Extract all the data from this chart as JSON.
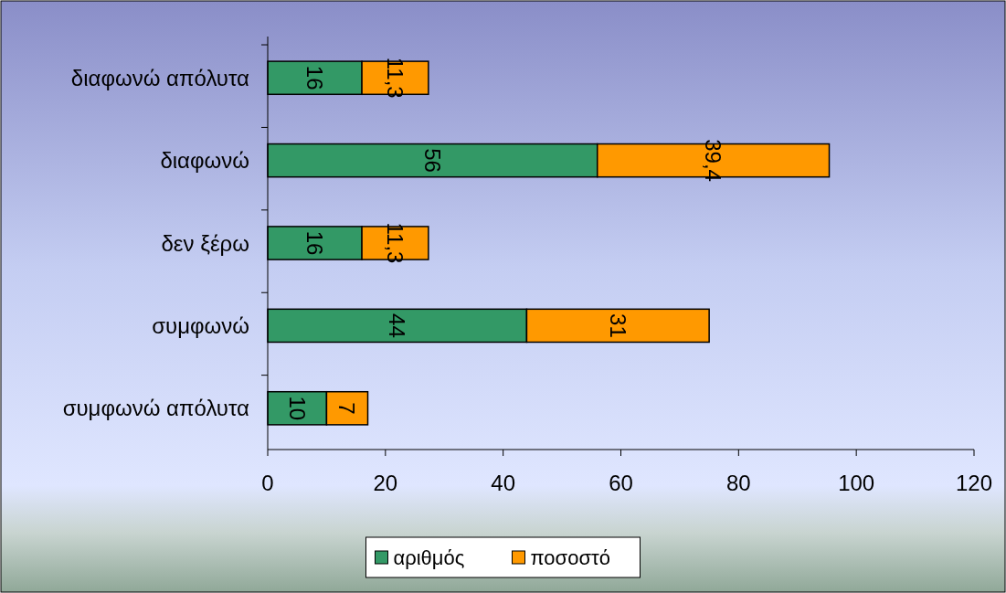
{
  "chart_data": {
    "type": "bar",
    "orientation": "horizontal",
    "stacked": true,
    "categories": [
      "διαφωνώ απόλυτα",
      "διαφωνώ",
      "δεν ξέρω",
      "συμφωνώ",
      "συμφωνώ απόλυτα"
    ],
    "series": [
      {
        "name": "αριθμός",
        "color": "#339966",
        "values": [
          16,
          56,
          16,
          44,
          10
        ],
        "value_labels": [
          "16",
          "56",
          "16",
          "44",
          "10"
        ]
      },
      {
        "name": "ποσοστό",
        "color": "#ff9900",
        "values": [
          11.3,
          39.4,
          11.3,
          31,
          7
        ],
        "value_labels": [
          "11,3",
          "39,4",
          "11,3",
          "31",
          "7"
        ]
      }
    ],
    "xlim": [
      0,
      120
    ],
    "xticks": [
      0,
      20,
      40,
      60,
      80,
      100,
      120
    ],
    "grid": false,
    "legend": "bottom"
  }
}
